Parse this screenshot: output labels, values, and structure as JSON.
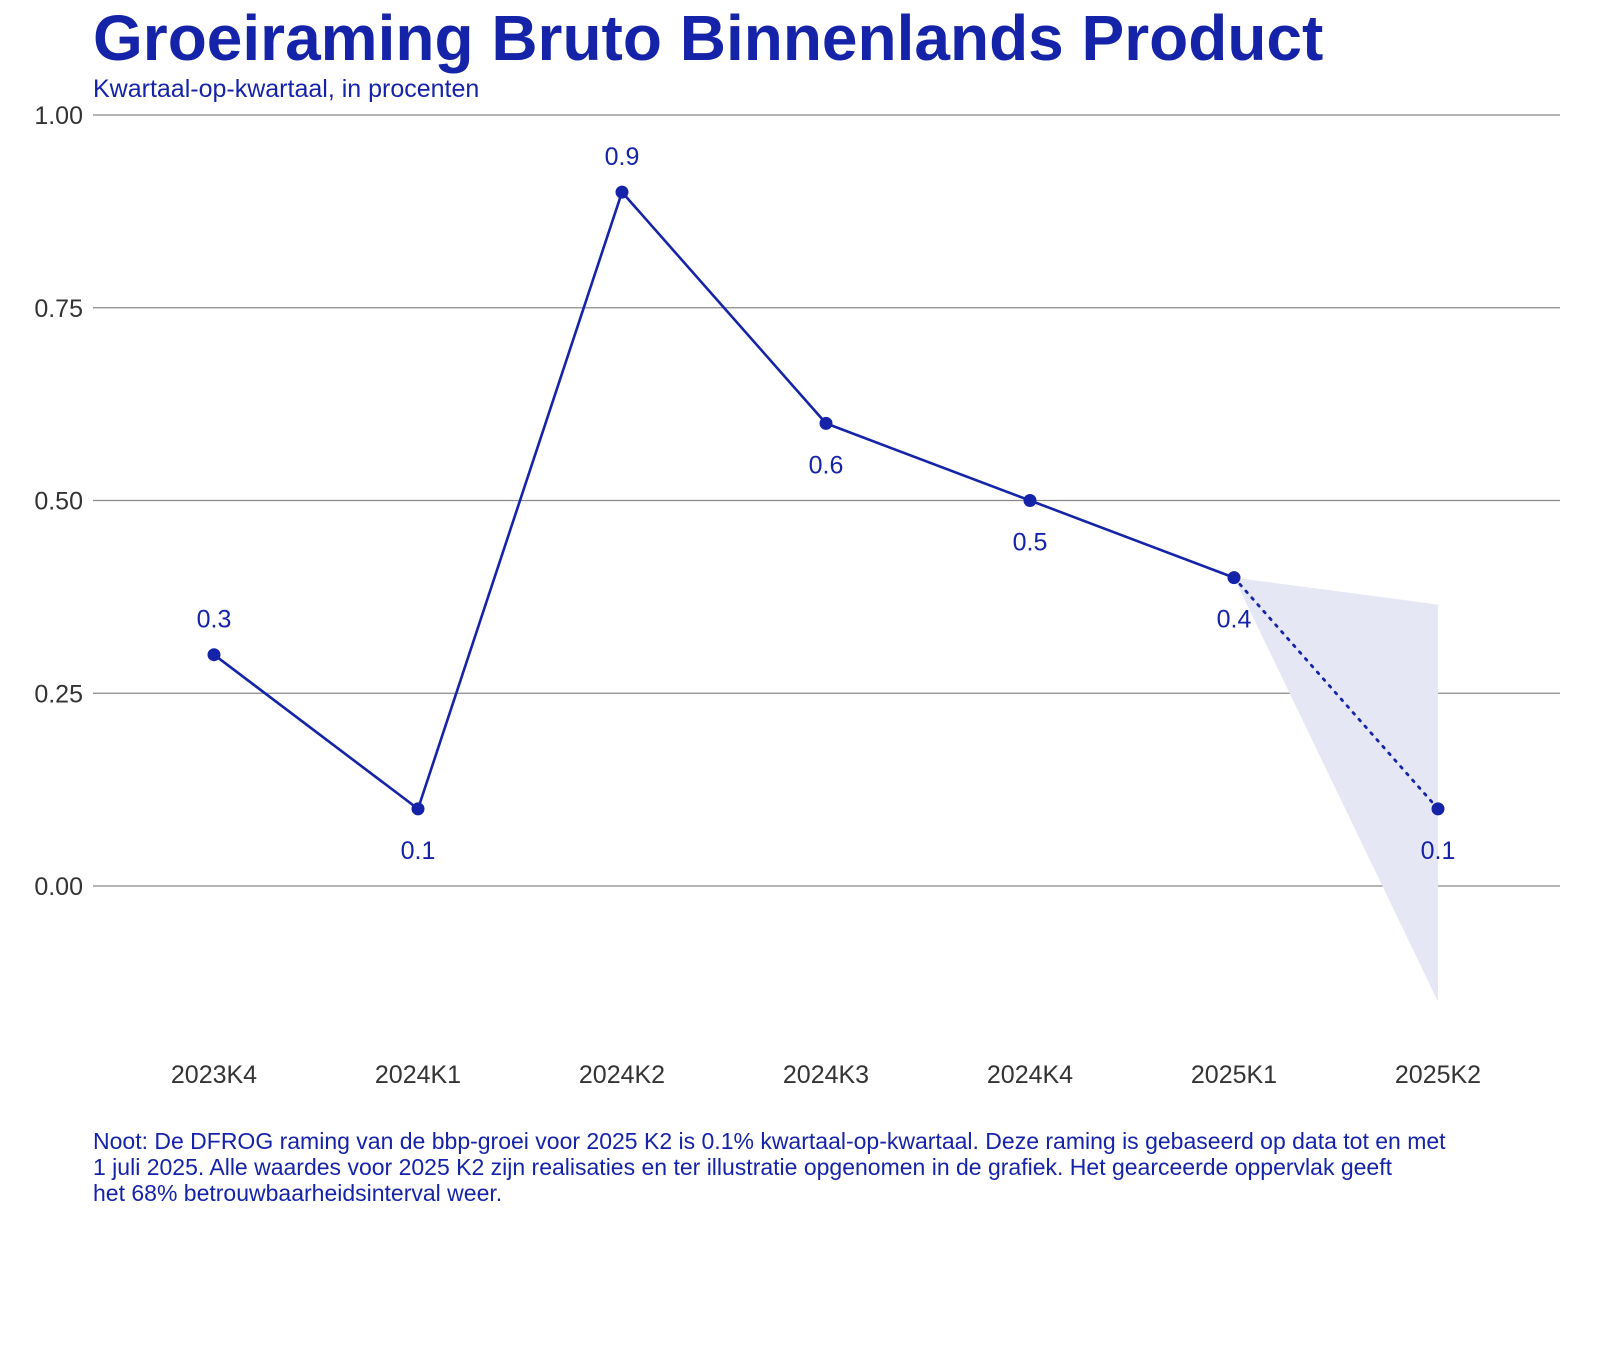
{
  "title": "Groeiraming Bruto Binnenlands Product",
  "subtitle": "Kwartaal-op-kwartaal, in procenten",
  "colors": {
    "accent": "#1523a8",
    "band": "#e5e7f5",
    "grid": "#888888",
    "tick_text": "#333333"
  },
  "chart_data": {
    "type": "line",
    "categories": [
      "2023K4",
      "2024K1",
      "2024K2",
      "2024K3",
      "2024K4",
      "2025K1",
      "2025K2"
    ],
    "values": [
      0.3,
      0.1,
      0.9,
      0.6,
      0.5,
      0.4,
      0.1
    ],
    "data_labels": [
      "0.3",
      "0.1",
      "0.9",
      "0.6",
      "0.5",
      "0.4",
      "0.1"
    ],
    "realised_through": "2025K1",
    "forecast_line_style": "dotted",
    "confidence_interval": {
      "level": "68%",
      "start": {
        "x": "2025K1",
        "lower": 0.4,
        "upper": 0.4
      },
      "end": {
        "x": "2025K2",
        "lower": -0.15,
        "upper": 0.365
      }
    },
    "ylim": [
      -0.19,
      1.0
    ],
    "yticks": [
      0,
      0.25,
      0.5,
      0.75,
      1.0
    ],
    "ytick_labels": [
      "0.00",
      "0.25",
      "0.50",
      "0.75",
      "1.00"
    ],
    "grid": true,
    "legend": "none",
    "xlabel": "",
    "ylabel": ""
  },
  "note_lines": [
    "Noot: De DFROG raming van de bbp-groei voor 2025 K2 is 0.1% kwartaal-op-kwartaal. Deze raming is gebaseerd op data tot en met",
    "1 juli 2025. Alle waardes voor 2025 K2 zijn realisaties en ter illustratie opgenomen in de grafiek. Het gearceerde oppervlak geeft",
    "het 68% betrouwbaarheidsinterval weer."
  ]
}
